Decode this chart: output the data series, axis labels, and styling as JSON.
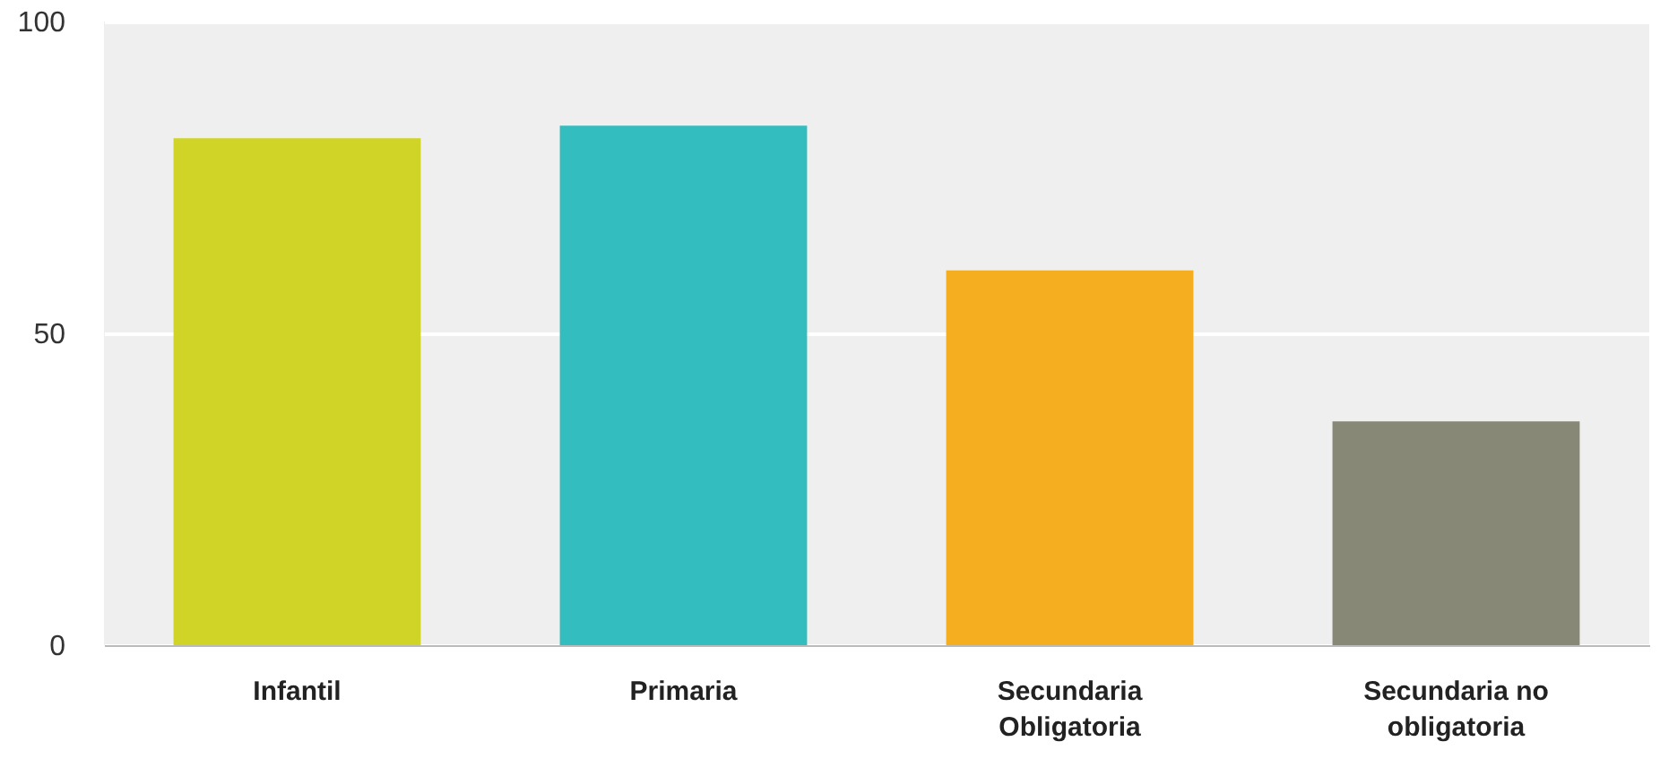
{
  "chart_data": {
    "type": "bar",
    "categories": [
      "Infantil",
      "Primaria",
      "Secundaria Obligatoria",
      "Secundaria no obligatoria"
    ],
    "values": [
      81.3,
      83.3,
      60.1,
      35.9
    ],
    "colors": [
      "#cfd426",
      "#33bdbf",
      "#f5ae1f",
      "#888877"
    ],
    "ylim": [
      0,
      100
    ],
    "yticks": [
      0,
      50,
      100
    ],
    "grid": "y"
  }
}
